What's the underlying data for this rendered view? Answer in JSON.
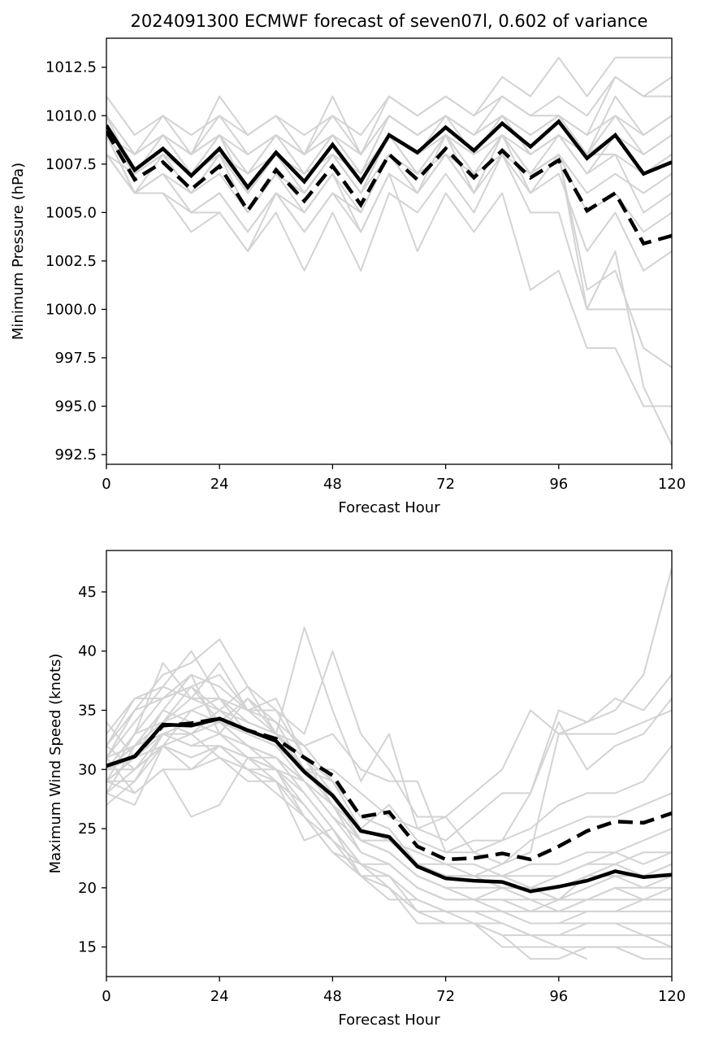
{
  "chart_data": [
    {
      "type": "line",
      "title": "2024091300 ECMWF forecast of seven07l, 0.602 of variance",
      "xlabel": "Forecast Hour",
      "ylabel": "Minimum Pressure (hPa)",
      "xlim": [
        0,
        120
      ],
      "ylim": [
        992,
        1014
      ],
      "xticks": [
        0,
        24,
        48,
        72,
        96,
        120
      ],
      "xtick_labels": [
        "0",
        "24",
        "48",
        "72",
        "96",
        "120"
      ],
      "yticks": [
        992.5,
        995,
        997.5,
        1000,
        1002.5,
        1005,
        1007.5,
        1010,
        1012.5
      ],
      "ytick_labels": [
        "992.5",
        "995.0",
        "997.5",
        "1000.0",
        "1002.5",
        "1005.0",
        "1007.5",
        "1010.0",
        "1012.5"
      ],
      "grid": false,
      "x": [
        0,
        6,
        12,
        18,
        24,
        30,
        36,
        42,
        48,
        54,
        60,
        66,
        72,
        78,
        84,
        90,
        96,
        102,
        108,
        114,
        120
      ],
      "series": [
        {
          "style": "solid",
          "color": "#000000",
          "values": [
            1009.5,
            1007.2,
            1008.3,
            1006.9,
            1008.3,
            1006.3,
            1008.1,
            1006.6,
            1008.5,
            1006.6,
            1009.0,
            1008.1,
            1009.4,
            1008.2,
            1009.6,
            1008.4,
            1009.7,
            1007.8,
            1009.0,
            1007.0,
            1007.6
          ]
        },
        {
          "style": "dashed",
          "color": "#000000",
          "values": [
            1009.2,
            1006.7,
            1007.6,
            1006.2,
            1007.4,
            1005.1,
            1007.2,
            1005.6,
            1007.4,
            1005.4,
            1008.0,
            1006.7,
            1008.3,
            1006.8,
            1008.2,
            1006.8,
            1007.7,
            1005.1,
            1006.0,
            1003.4,
            1003.8
          ]
        }
      ],
      "members_color": "#d3d3d3",
      "members": [
        [
          1011,
          1009,
          1010,
          1009,
          1010,
          1009,
          1010,
          1009,
          1010,
          1009,
          1011,
          1010,
          1011,
          1010,
          1011,
          1010,
          1011,
          1010,
          1012,
          1011,
          1012
        ],
        [
          1010,
          1008,
          1010,
          1008,
          1011,
          1009,
          1010,
          1008,
          1011,
          1008,
          1011,
          1010,
          1011,
          1010,
          1012,
          1011,
          1013,
          1011,
          1013,
          1013,
          1013
        ],
        [
          1010,
          1008,
          1009,
          1008,
          1010,
          1008,
          1009,
          1008,
          1010,
          1008,
          1010,
          1009,
          1010,
          1009,
          1011,
          1010,
          1010,
          1009,
          1012,
          1011,
          1011
        ],
        [
          1009,
          1007,
          1009,
          1007,
          1009,
          1007,
          1009,
          1007,
          1009,
          1007,
          1010,
          1009,
          1010,
          1009,
          1010,
          1009,
          1010,
          1008,
          1011,
          1009,
          1010
        ],
        [
          1009,
          1007,
          1008,
          1007,
          1008,
          1007,
          1008,
          1007,
          1008,
          1007,
          1009,
          1008,
          1009,
          1008,
          1009,
          1008,
          1009,
          1008,
          1010,
          1008,
          1009
        ],
        [
          1009,
          1007,
          1008,
          1006,
          1008,
          1006,
          1008,
          1006,
          1008,
          1006,
          1009,
          1008,
          1009,
          1008,
          1010,
          1009,
          1010,
          1008,
          1008,
          1007,
          1008
        ],
        [
          1008,
          1007,
          1008,
          1007,
          1009,
          1006,
          1008,
          1007,
          1009,
          1007,
          1009,
          1008,
          1010,
          1008,
          1010,
          1008,
          1009,
          1007,
          1009,
          1007,
          1008
        ],
        [
          1009,
          1006,
          1007,
          1006,
          1007,
          1005,
          1007,
          1006,
          1008,
          1006,
          1008,
          1007,
          1008,
          1007,
          1009,
          1007,
          1008,
          1006,
          1007,
          1006,
          1007
        ],
        [
          1010,
          1007,
          1008,
          1006,
          1008,
          1005,
          1007,
          1005,
          1007,
          1005,
          1008,
          1006,
          1008,
          1007,
          1008,
          1007,
          1008,
          1005,
          1006,
          1004,
          1005
        ],
        [
          1009,
          1006,
          1007,
          1005,
          1006,
          1004,
          1006,
          1005,
          1007,
          1004,
          1007,
          1006,
          1008,
          1006,
          1008,
          1006,
          1007,
          1003,
          1005,
          1002,
          1003
        ],
        [
          1009,
          1006,
          1006,
          1005,
          1006,
          1004,
          1006,
          1004,
          1006,
          1005,
          1008,
          1006,
          1009,
          1006,
          1009,
          1006,
          1008,
          1001,
          1002,
          998,
          997
        ],
        [
          1009,
          1006,
          1006,
          1004,
          1005,
          1003,
          1005,
          1002,
          1005,
          1002,
          1006,
          1005,
          1007,
          1005,
          1008,
          1005,
          1005,
          1000,
          1003,
          996,
          993
        ],
        [
          1008,
          1006,
          1007,
          1005,
          1005,
          1003,
          1006,
          1004,
          1006,
          1004,
          1007,
          1003,
          1006,
          1004,
          1006,
          1001,
          1002,
          998,
          998,
          995,
          995
        ],
        [
          1010,
          1008,
          1009,
          1008,
          1009,
          1008,
          1009,
          1008,
          1009,
          1008,
          1010,
          1009,
          1010,
          1009,
          1010,
          1009,
          1010,
          1009,
          1010,
          1009,
          1010
        ],
        [
          1009,
          1008,
          1009,
          1008,
          1009,
          1007,
          1009,
          1008,
          1009,
          1007,
          1010,
          1009,
          1010,
          1009,
          1010,
          1008,
          1009,
          1008,
          1009,
          1008,
          1009
        ],
        [
          1008,
          1006,
          1008,
          1006,
          1008,
          1006,
          1008,
          1006,
          1008,
          1006,
          1009,
          1007,
          1009,
          1007,
          1009,
          1007,
          1009,
          1007,
          1008,
          1005,
          1006
        ],
        [
          1009,
          1007,
          1008,
          1007,
          1008,
          1006,
          1008,
          1006,
          1008,
          1006,
          1009,
          1007,
          1009,
          1007,
          1009,
          1007,
          1008,
          1000,
          1000,
          1000,
          1000
        ]
      ]
    },
    {
      "type": "line",
      "title": "",
      "xlabel": "Forecast Hour",
      "ylabel": "Maximum Wind Speed (knots)",
      "xlim": [
        0,
        120
      ],
      "ylim": [
        12.5,
        48.5
      ],
      "xticks": [
        0,
        24,
        48,
        72,
        96,
        120
      ],
      "xtick_labels": [
        "0",
        "24",
        "48",
        "72",
        "96",
        "120"
      ],
      "yticks": [
        15,
        20,
        25,
        30,
        35,
        40,
        45
      ],
      "ytick_labels": [
        "15",
        "20",
        "25",
        "30",
        "35",
        "40",
        "45"
      ],
      "grid": false,
      "x": [
        0,
        6,
        12,
        18,
        24,
        30,
        36,
        42,
        48,
        54,
        60,
        66,
        72,
        78,
        84,
        90,
        96,
        102,
        108,
        114,
        120
      ],
      "series": [
        {
          "style": "solid",
          "color": "#000000",
          "values": [
            30.3,
            31.1,
            33.8,
            33.7,
            34.3,
            33.3,
            32.4,
            29.8,
            27.8,
            24.8,
            24.3,
            21.8,
            20.8,
            20.6,
            20.5,
            19.7,
            20.1,
            20.6,
            21.4,
            20.9,
            21.1
          ]
        },
        {
          "style": "dashed",
          "color": "#000000",
          "values": [
            30.3,
            31.1,
            33.7,
            33.9,
            34.3,
            33.3,
            32.6,
            31.0,
            29.5,
            26.0,
            26.4,
            23.5,
            22.4,
            22.5,
            22.9,
            22.4,
            23.5,
            24.8,
            25.6,
            25.5,
            26.3
          ]
        }
      ],
      "members_color": "#d3d3d3",
      "members": [
        [
          31,
          35,
          38,
          39,
          41,
          37,
          35,
          31,
          29,
          25,
          27,
          24,
          23,
          24,
          24,
          28,
          35,
          34,
          35,
          38,
          47
        ],
        [
          29,
          33,
          36,
          37,
          35,
          37,
          33,
          42,
          35,
          29,
          33,
          25,
          26,
          23,
          22,
          23,
          33,
          34,
          36,
          35,
          38
        ],
        [
          32,
          36,
          37,
          40,
          36,
          35,
          35,
          33,
          40,
          33,
          30,
          26,
          26,
          28,
          30,
          35,
          33,
          33,
          33,
          34,
          35
        ],
        [
          28,
          32,
          35,
          38,
          33,
          36,
          34,
          30,
          30,
          28,
          26,
          25,
          24,
          26,
          28,
          28,
          34,
          30,
          32,
          33,
          36
        ],
        [
          33,
          36,
          36,
          38,
          37,
          35,
          34,
          32,
          33,
          30,
          29,
          29,
          23,
          23,
          24,
          25,
          27,
          28,
          28,
          29,
          32
        ],
        [
          30,
          33,
          34,
          33,
          35,
          34,
          33,
          31,
          28,
          25,
          24,
          22,
          21,
          21,
          22,
          24,
          25,
          26,
          26,
          27,
          28
        ],
        [
          31,
          34,
          37,
          36,
          36,
          34,
          33,
          32,
          29,
          26,
          25,
          22,
          22,
          22,
          21,
          22,
          22,
          23,
          23,
          24,
          25
        ],
        [
          30,
          32,
          34,
          35,
          36,
          33,
          32,
          30,
          28,
          25,
          24,
          22,
          21,
          21,
          21,
          21,
          21,
          22,
          22,
          23,
          23
        ],
        [
          30,
          31,
          34,
          36,
          35,
          33,
          32,
          30,
          27,
          24,
          24,
          22,
          21,
          21,
          20,
          20,
          20,
          21,
          21,
          21,
          22
        ],
        [
          29,
          31,
          33,
          34,
          34,
          32,
          31,
          29,
          27,
          24,
          23,
          21,
          20,
          20,
          20,
          20,
          19,
          20,
          21,
          20,
          21
        ],
        [
          30,
          30,
          33,
          33,
          34,
          33,
          32,
          29,
          26,
          24,
          23,
          21,
          20,
          19,
          20,
          19,
          19,
          19,
          20,
          20,
          20
        ],
        [
          28,
          30,
          32,
          35,
          34,
          32,
          31,
          29,
          27,
          23,
          22,
          20,
          19,
          19,
          19,
          19,
          18,
          19,
          20,
          19,
          20
        ],
        [
          29,
          29,
          33,
          32,
          33,
          32,
          30,
          29,
          26,
          23,
          22,
          20,
          19,
          19,
          19,
          18,
          18,
          19,
          19,
          19,
          19
        ],
        [
          30,
          31,
          35,
          34,
          33,
          31,
          31,
          28,
          25,
          22,
          22,
          20,
          19,
          19,
          18,
          18,
          18,
          18,
          18,
          19,
          19
        ],
        [
          31,
          32,
          33,
          32,
          32,
          31,
          30,
          28,
          25,
          22,
          21,
          19,
          18,
          18,
          18,
          17,
          17,
          18,
          18,
          18,
          18
        ],
        [
          27,
          29,
          32,
          31,
          32,
          30,
          30,
          27,
          24,
          22,
          21,
          19,
          18,
          18,
          18,
          17,
          17,
          17,
          17,
          17,
          17
        ],
        [
          32,
          30,
          32,
          33,
          31,
          30,
          29,
          27,
          24,
          21,
          21,
          18,
          18,
          17,
          17,
          16,
          16,
          17,
          17,
          16,
          16
        ],
        [
          28,
          27,
          32,
          30,
          31,
          29,
          29,
          26,
          24,
          21,
          20,
          18,
          17,
          17,
          16,
          16,
          16,
          16,
          16,
          16,
          15
        ],
        [
          29,
          28,
          30,
          26,
          27,
          31,
          29,
          24,
          25,
          21,
          20,
          17,
          17,
          17,
          15,
          15,
          15,
          15,
          15,
          15,
          15
        ],
        [
          34,
          31,
          32,
          31,
          32,
          30,
          28,
          26,
          23,
          22,
          20,
          18,
          17,
          17,
          16,
          14,
          14,
          15,
          15,
          14,
          14
        ],
        [
          31,
          28,
          30,
          30,
          32,
          31,
          30,
          26,
          23,
          21,
          19,
          19,
          18,
          18,
          17,
          16,
          15,
          14,
          null,
          null,
          null
        ],
        [
          30,
          33,
          39,
          36,
          39,
          35,
          33,
          30,
          28,
          24,
          23,
          21,
          20,
          19,
          19,
          18,
          19,
          19,
          19,
          19,
          19
        ],
        [
          32,
          35,
          36,
          37,
          38,
          35,
          36,
          31,
          27,
          25,
          24,
          23,
          22,
          21,
          20,
          20,
          19,
          21,
          22,
          21,
          22
        ],
        [
          29,
          31,
          34,
          37,
          34,
          36,
          33,
          30,
          29,
          26,
          25,
          22,
          21,
          21,
          21,
          20,
          21,
          22,
          23,
          22,
          23
        ]
      ]
    }
  ]
}
